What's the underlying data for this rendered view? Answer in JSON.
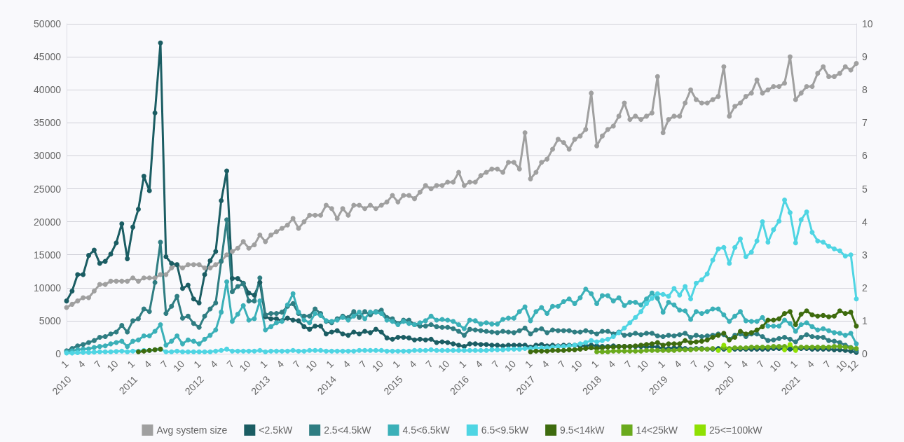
{
  "chart_data": {
    "type": "line",
    "categories": [
      "1",
      null,
      null,
      "4",
      null,
      null,
      "7",
      null,
      null,
      "10",
      null,
      null,
      "1",
      null,
      null,
      "4",
      null,
      null,
      "7",
      null,
      null,
      "10",
      null,
      null,
      "1",
      null,
      null,
      "4",
      null,
      null,
      "7",
      null,
      null,
      "10",
      null,
      null,
      "1",
      null,
      null,
      "4",
      null,
      null,
      "7",
      null,
      null,
      "10",
      null,
      null,
      "1",
      null,
      null,
      "4",
      null,
      null,
      "7",
      null,
      null,
      "10",
      null,
      null,
      "1",
      null,
      null,
      "4",
      null,
      null,
      "7",
      null,
      null,
      "10",
      null,
      null,
      "1",
      null,
      null,
      "4",
      null,
      null,
      "7",
      null,
      null,
      "10",
      null,
      null,
      "1",
      null,
      null,
      "4",
      null,
      null,
      "7",
      null,
      null,
      "10",
      null,
      null,
      "1",
      null,
      null,
      "4",
      null,
      null,
      "7",
      null,
      null,
      "10",
      null,
      null,
      "1",
      null,
      null,
      "4",
      null,
      null,
      "7",
      null,
      null,
      "10",
      null,
      null,
      "1",
      null,
      null,
      "4",
      null,
      null,
      "7",
      null,
      null,
      "10",
      null,
      null,
      "1",
      null,
      null,
      "4",
      null,
      null,
      "7",
      null,
      null,
      "10",
      null,
      "12"
    ],
    "annotations": [
      "2010",
      "2011",
      "2012",
      "2013",
      "2014",
      "2015",
      "2016",
      "2017",
      "2018",
      "2019",
      "2020",
      "2021"
    ],
    "series": [
      {
        "name": "Avg system size",
        "color": "#a0a0a0",
        "axis": "y2",
        "values": [
          1.4,
          1.5,
          1.6,
          1.7,
          1.7,
          1.9,
          2.1,
          2.1,
          2.2,
          2.2,
          2.2,
          2.2,
          2.3,
          2.2,
          2.3,
          2.3,
          2.3,
          2.4,
          2.4,
          2.6,
          2.7,
          2.6,
          2.7,
          2.7,
          2.7,
          2.6,
          2.6,
          2.7,
          2.8,
          3.0,
          3.1,
          3.2,
          3.4,
          3.2,
          3.3,
          3.6,
          3.4,
          3.6,
          3.7,
          3.8,
          3.9,
          4.1,
          3.8,
          4.0,
          4.2,
          4.2,
          4.2,
          4.5,
          4.4,
          4.1,
          4.4,
          4.2,
          4.5,
          4.5,
          4.4,
          4.5,
          4.4,
          4.5,
          4.6,
          4.8,
          4.6,
          4.8,
          4.8,
          4.7,
          4.9,
          5.1,
          5.0,
          5.1,
          5.1,
          5.2,
          5.2,
          5.5,
          5.1,
          5.2,
          5.2,
          5.4,
          5.5,
          5.6,
          5.6,
          5.5,
          5.8,
          5.8,
          5.6,
          6.7,
          5.3,
          5.5,
          5.8,
          5.9,
          6.2,
          6.5,
          6.4,
          6.2,
          6.5,
          6.6,
          6.8,
          7.9,
          6.3,
          6.6,
          6.8,
          6.9,
          7.2,
          7.6,
          7.1,
          7.2,
          7.1,
          7.2,
          7.3,
          8.4,
          6.7,
          7.1,
          7.2,
          7.2,
          7.6,
          8.0,
          7.7,
          7.6,
          7.6,
          7.7,
          7.8,
          8.7,
          7.2,
          7.5,
          7.6,
          7.8,
          7.9,
          8.3,
          7.9,
          8.0,
          8.1,
          8.1,
          8.2,
          9.0,
          7.7,
          7.9,
          8.1,
          8.1,
          8.5,
          8.7,
          8.4,
          8.4,
          8.5,
          8.7,
          8.6,
          8.8
        ]
      },
      {
        "name": "<2.5kW",
        "color": "#1b5d63",
        "values": [
          8000,
          9500,
          12000,
          12000,
          14900,
          15700,
          13700,
          14000,
          15100,
          16800,
          19700,
          14400,
          19200,
          21900,
          26900,
          24700,
          36500,
          47100,
          14700,
          13700,
          13500,
          9900,
          10400,
          8300,
          7700,
          12000,
          14100,
          15500,
          23200,
          27700,
          11400,
          11400,
          10700,
          9200,
          8900,
          10800,
          5600,
          5300,
          5300,
          5000,
          5400,
          5100,
          5000,
          4100,
          3700,
          4200,
          4200,
          3000,
          3300,
          3500,
          3000,
          2800,
          3300,
          3000,
          3400,
          3200,
          3700,
          3300,
          2400,
          2200,
          2500,
          2500,
          2400,
          2100,
          2200,
          2100,
          2200,
          1700,
          1800,
          1700,
          1500,
          1300,
          1100,
          1500,
          1500,
          1400,
          1400,
          1300,
          1300,
          1200,
          1300,
          1300,
          1300,
          1300,
          1000,
          1300,
          1400,
          1200,
          1300,
          1200,
          1300,
          1300,
          1300,
          1200,
          1200,
          1300,
          1200,
          1100,
          1100,
          1200,
          1100,
          1100,
          1100,
          1100,
          1100,
          1000,
          1100,
          1000,
          800,
          800,
          900,
          900,
          800,
          700,
          800,
          800,
          700,
          700,
          800,
          700,
          700,
          700,
          700,
          700,
          700,
          700,
          700,
          700,
          800,
          800,
          700,
          700,
          700,
          800,
          800,
          700,
          700,
          700,
          700,
          600,
          600,
          500,
          400,
          200
        ]
      },
      {
        "name": "2.5<4.5kW",
        "color": "#2f7d82",
        "values": [
          450,
          800,
          1200,
          1400,
          1700,
          2000,
          2500,
          2600,
          3000,
          3300,
          4300,
          3300,
          5000,
          5300,
          6800,
          6400,
          10800,
          16900,
          6100,
          7200,
          8700,
          5400,
          5700,
          4600,
          4000,
          5700,
          6800,
          7700,
          14000,
          20300,
          9400,
          10200,
          10600,
          8000,
          8000,
          11500,
          5900,
          6100,
          6100,
          6300,
          7200,
          7600,
          6100,
          5700,
          5700,
          6800,
          6100,
          4900,
          4700,
          5300,
          5700,
          5500,
          6400,
          5500,
          6400,
          5900,
          6400,
          6600,
          5500,
          5300,
          4600,
          5100,
          5100,
          4400,
          4200,
          4200,
          4400,
          4100,
          4000,
          4000,
          3800,
          3400,
          2800,
          3700,
          3600,
          3500,
          3400,
          3300,
          3200,
          3400,
          3300,
          3200,
          3500,
          3900,
          3000,
          3600,
          3800,
          3200,
          3600,
          3500,
          3500,
          3500,
          3300,
          3300,
          3500,
          3300,
          3000,
          3400,
          3400,
          3000,
          3300,
          2800,
          2900,
          3100,
          2900,
          3100,
          3100,
          2700,
          2600,
          2800,
          2700,
          2900,
          3100,
          2500,
          2800,
          2600,
          2700,
          2800,
          3000,
          2900,
          2200,
          2800,
          3000,
          2600,
          3000,
          3000,
          2600,
          2000,
          2100,
          2300,
          2500,
          2200,
          1800,
          2500,
          2900,
          2600,
          2500,
          2500,
          2000,
          1900,
          1700,
          1300,
          950,
          450
        ]
      },
      {
        "name": "4.5<6.5kW",
        "color": "#3bb0b8",
        "values": [
          300,
          450,
          600,
          700,
          750,
          950,
          1100,
          1200,
          1500,
          1700,
          1900,
          1100,
          1900,
          2100,
          2700,
          2700,
          3400,
          4400,
          1300,
          1900,
          2700,
          1500,
          2100,
          1900,
          1500,
          2200,
          2800,
          3600,
          6300,
          10900,
          4900,
          6000,
          7300,
          5100,
          5300,
          8000,
          3600,
          4100,
          4700,
          4900,
          7400,
          9100,
          6300,
          5100,
          4700,
          6100,
          5800,
          5000,
          4900,
          5100,
          5500,
          5100,
          5700,
          6300,
          5300,
          6300,
          6300,
          6100,
          5100,
          4900,
          4400,
          4900,
          4600,
          4400,
          4700,
          5000,
          5700,
          5100,
          5200,
          5100,
          4900,
          4400,
          3800,
          5100,
          5000,
          4500,
          4700,
          4500,
          4500,
          5200,
          5400,
          5400,
          6400,
          7100,
          5000,
          6400,
          7000,
          6100,
          7200,
          7200,
          7900,
          8300,
          7600,
          8500,
          9800,
          9100,
          7600,
          8800,
          8800,
          8000,
          8500,
          7300,
          7800,
          7800,
          7400,
          8300,
          9200,
          8400,
          6300,
          7800,
          7400,
          6600,
          6500,
          5200,
          6400,
          6100,
          6400,
          6800,
          6800,
          5900,
          4900,
          5700,
          6400,
          5000,
          4900,
          4900,
          5500,
          4200,
          4200,
          4200,
          5100,
          4600,
          3400,
          4400,
          4700,
          4100,
          3600,
          3800,
          3500,
          3200,
          3100,
          2800,
          3100,
          1500
        ]
      },
      {
        "name": "6.5<9.5kW",
        "color": "#4fd5e3",
        "values": [
          100,
          100,
          150,
          200,
          200,
          250,
          300,
          300,
          300,
          350,
          400,
          300,
          400,
          400,
          500,
          500,
          600,
          700,
          300,
          300,
          400,
          300,
          300,
          300,
          300,
          300,
          300,
          400,
          500,
          700,
          400,
          400,
          400,
          400,
          400,
          500,
          300,
          400,
          400,
          400,
          400,
          500,
          400,
          400,
          500,
          500,
          500,
          400,
          400,
          400,
          400,
          400,
          400,
          500,
          500,
          500,
          500,
          500,
          400,
          400,
          400,
          400,
          400,
          500,
          500,
          500,
          600,
          500,
          500,
          500,
          500,
          500,
          500,
          500,
          500,
          500,
          500,
          600,
          600,
          600,
          700,
          700,
          700,
          800,
          800,
          900,
          900,
          900,
          1000,
          1100,
          1100,
          1200,
          1300,
          1500,
          1700,
          2000,
          1800,
          2000,
          2200,
          2600,
          3200,
          3900,
          4700,
          5500,
          6400,
          7600,
          8400,
          9100,
          9000,
          8700,
          9900,
          8900,
          10200,
          8300,
          10700,
          11200,
          12100,
          14200,
          15900,
          16100,
          13700,
          16100,
          17400,
          14700,
          15400,
          17100,
          20000,
          16900,
          18800,
          20100,
          23300,
          21400,
          16800,
          20300,
          21500,
          18400,
          17100,
          16900,
          16300,
          15900,
          15600,
          14800,
          15000,
          8300
        ]
      },
      {
        "name": "9.5<14kW",
        "color": "#3e6b0e",
        "values": [
          null,
          null,
          null,
          null,
          null,
          null,
          null,
          null,
          null,
          null,
          null,
          null,
          null,
          300,
          400,
          500,
          600,
          700,
          null,
          null,
          null,
          null,
          null,
          null,
          null,
          null,
          null,
          null,
          null,
          null,
          null,
          null,
          null,
          null,
          null,
          null,
          null,
          null,
          null,
          null,
          null,
          null,
          null,
          null,
          null,
          null,
          null,
          null,
          null,
          null,
          null,
          null,
          null,
          null,
          null,
          null,
          null,
          null,
          null,
          null,
          null,
          null,
          null,
          null,
          null,
          null,
          null,
          null,
          null,
          null,
          null,
          null,
          null,
          null,
          null,
          null,
          null,
          null,
          null,
          null,
          null,
          null,
          null,
          null,
          300,
          400,
          400,
          400,
          500,
          500,
          500,
          600,
          600,
          700,
          800,
          900,
          800,
          900,
          1000,
          1000,
          1100,
          1100,
          1100,
          1200,
          1300,
          1400,
          1500,
          1700,
          1300,
          1500,
          1500,
          1500,
          2000,
          1700,
          1800,
          1900,
          2100,
          2500,
          2800,
          3100,
          2100,
          2500,
          3400,
          3000,
          3200,
          3600,
          4100,
          5100,
          5100,
          5300,
          6100,
          6400,
          4400,
          6000,
          6500,
          5900,
          5700,
          5800,
          5600,
          5700,
          6500,
          6100,
          6300,
          4200
        ]
      },
      {
        "name": "14<25kW",
        "color": "#6aaa1d",
        "values": [
          null,
          null,
          null,
          null,
          null,
          null,
          null,
          null,
          null,
          null,
          null,
          null,
          null,
          null,
          null,
          null,
          null,
          null,
          null,
          null,
          null,
          null,
          null,
          null,
          null,
          null,
          null,
          null,
          null,
          null,
          null,
          null,
          null,
          null,
          null,
          null,
          null,
          null,
          null,
          null,
          null,
          null,
          null,
          null,
          null,
          null,
          null,
          null,
          null,
          null,
          null,
          null,
          null,
          null,
          null,
          null,
          null,
          null,
          null,
          null,
          null,
          null,
          null,
          null,
          null,
          null,
          null,
          null,
          null,
          null,
          null,
          null,
          null,
          null,
          null,
          null,
          null,
          null,
          null,
          null,
          null,
          null,
          null,
          null,
          null,
          null,
          null,
          null,
          null,
          null,
          null,
          null,
          null,
          null,
          null,
          null,
          300,
          300,
          300,
          400,
          400,
          400,
          400,
          400,
          400,
          500,
          500,
          500,
          500,
          500,
          500,
          600,
          600,
          600,
          700,
          700,
          700,
          800,
          null,
          900,
          800,
          900,
          900,
          900,
          1000,
          1000,
          1000,
          1000,
          1100,
          1100,
          1100,
          null,
          900,
          1000,
          1000,
          1000,
          1000,
          1000,
          1000,
          1100,
          1100,
          1000,
          900,
          800
        ]
      },
      {
        "name": "25<=100kW",
        "color": "#8fe003",
        "values": [
          null,
          null,
          null,
          null,
          null,
          null,
          null,
          null,
          null,
          null,
          null,
          null,
          null,
          null,
          null,
          null,
          null,
          null,
          null,
          null,
          null,
          null,
          null,
          null,
          null,
          null,
          null,
          null,
          null,
          null,
          null,
          null,
          null,
          null,
          null,
          null,
          null,
          null,
          null,
          null,
          null,
          null,
          null,
          null,
          null,
          null,
          null,
          null,
          null,
          null,
          null,
          null,
          null,
          null,
          null,
          null,
          null,
          null,
          null,
          null,
          null,
          null,
          null,
          null,
          null,
          null,
          null,
          null,
          null,
          null,
          null,
          null,
          null,
          null,
          null,
          null,
          null,
          null,
          null,
          null,
          null,
          null,
          null,
          null,
          null,
          null,
          null,
          null,
          null,
          null,
          null,
          null,
          null,
          null,
          null,
          null,
          null,
          null,
          null,
          null,
          null,
          null,
          null,
          null,
          null,
          null,
          null,
          null,
          null,
          null,
          null,
          null,
          null,
          null,
          null,
          null,
          null,
          null,
          500,
          1300,
          500,
          null,
          null,
          null,
          null,
          null,
          null,
          null,
          null,
          null,
          600,
          1400,
          500,
          null,
          null,
          null,
          null,
          null,
          null,
          null,
          null,
          null,
          null,
          null
        ]
      }
    ],
    "ylim": [
      0,
      50000
    ],
    "yticks": [
      0,
      5000,
      10000,
      15000,
      20000,
      25000,
      30000,
      35000,
      40000,
      45000,
      50000
    ],
    "y2lim": [
      0,
      10
    ],
    "y2ticks": [
      0,
      1,
      2,
      3,
      4,
      5,
      6,
      7,
      8,
      9,
      10
    ],
    "grid": "y",
    "legend": "bottom",
    "marker": "circle",
    "line_style": "solid"
  }
}
